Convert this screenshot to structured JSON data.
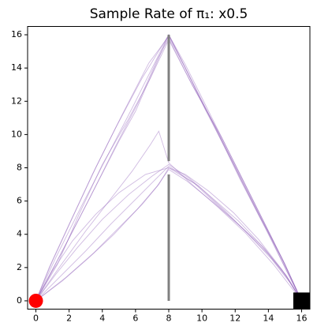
{
  "chart_data": {
    "type": "trajectory",
    "title": "Sample Rate of π₁: x0.5",
    "xlim": [
      -0.5,
      16.5
    ],
    "ylim": [
      -0.5,
      16.5
    ],
    "xticks": [
      0,
      2,
      4,
      6,
      8,
      10,
      12,
      14,
      16
    ],
    "yticks": [
      0,
      2,
      4,
      6,
      8,
      10,
      12,
      14,
      16
    ],
    "line_color": "#9467bd",
    "wall_color": "#808080",
    "start": {
      "x": 0,
      "y": 0,
      "color": "#ff0000"
    },
    "goal": {
      "x": 16,
      "y": 0,
      "color": "#000000"
    },
    "walls": [
      {
        "x": [
          8,
          8
        ],
        "y": [
          0,
          7.6
        ]
      },
      {
        "x": [
          8,
          8
        ],
        "y": [
          8.4,
          16
        ]
      }
    ],
    "trajectories": [
      {
        "x": [
          0,
          1.2,
          2.8,
          4.3,
          5.8,
          7.0,
          8.0,
          9.2,
          10.8,
          12.3,
          13.8,
          15.0,
          16
        ],
        "y": [
          0,
          2.6,
          5.8,
          8.7,
          11.6,
          14.0,
          16.0,
          13.6,
          10.4,
          7.3,
          4.4,
          2.0,
          0
        ]
      },
      {
        "x": [
          0,
          1.0,
          2.2,
          3.6,
          5.2,
          6.8,
          8.0,
          9.0,
          10.2,
          11.8,
          13.4,
          15.0,
          16
        ],
        "y": [
          0,
          2.4,
          5.0,
          8.0,
          11.2,
          14.3,
          15.9,
          14.0,
          11.5,
          8.4,
          5.2,
          2.2,
          0
        ]
      },
      {
        "x": [
          0,
          1.5,
          3.2,
          4.8,
          6.2,
          7.3,
          8.0,
          9.4,
          11.2,
          12.8,
          14.2,
          15.2,
          16
        ],
        "y": [
          0,
          2.8,
          6.1,
          9.3,
          12.0,
          14.5,
          15.8,
          13.0,
          9.8,
          6.6,
          3.8,
          1.7,
          0
        ]
      },
      {
        "x": [
          0,
          0.8,
          2.0,
          3.4,
          4.8,
          6.4,
          8.0,
          9.6,
          11.0,
          12.4,
          13.9,
          15.1,
          16
        ],
        "y": [
          0,
          2.0,
          4.6,
          7.6,
          10.4,
          13.4,
          16.0,
          12.8,
          10.1,
          7.2,
          4.3,
          1.8,
          0
        ]
      },
      {
        "x": [
          0,
          1.8,
          3.4,
          5.0,
          6.0,
          7.4,
          8.0,
          9.0,
          10.6,
          12.0,
          13.2,
          14.8,
          16
        ],
        "y": [
          0,
          3.4,
          6.5,
          9.6,
          11.4,
          14.6,
          16.0,
          14.2,
          11.0,
          8.2,
          5.8,
          2.6,
          0
        ]
      },
      {
        "x": [
          0,
          1.3,
          2.6,
          4.0,
          5.5,
          6.8,
          8.0,
          9.3,
          10.5,
          12.1,
          13.6,
          14.9,
          16
        ],
        "y": [
          0,
          2.2,
          5.2,
          8.2,
          10.8,
          13.2,
          15.7,
          13.2,
          11.0,
          7.9,
          4.9,
          2.4,
          0
        ]
      },
      {
        "x": [
          0,
          1.5,
          3.0,
          4.5,
          6.0,
          7.2,
          8.0,
          9.5,
          11.0,
          12.5,
          14.0,
          15.2,
          16
        ],
        "y": [
          0,
          1.5,
          3.0,
          4.6,
          6.1,
          7.3,
          8.1,
          7.1,
          5.7,
          4.3,
          2.8,
          1.3,
          0
        ]
      },
      {
        "x": [
          0,
          1.2,
          2.5,
          4.0,
          5.6,
          7.0,
          8.0,
          9.2,
          10.6,
          12.2,
          13.8,
          15.0,
          16
        ],
        "y": [
          0,
          1.6,
          3.2,
          4.9,
          6.4,
          7.5,
          8.2,
          7.4,
          6.2,
          4.8,
          3.1,
          1.6,
          0
        ]
      },
      {
        "x": [
          0,
          1.8,
          3.5,
          5.0,
          6.4,
          7.4,
          8.0,
          9.0,
          10.4,
          11.9,
          13.4,
          14.8,
          16
        ],
        "y": [
          0,
          1.4,
          2.9,
          4.4,
          5.8,
          7.0,
          8.0,
          7.6,
          6.6,
          5.3,
          3.7,
          1.9,
          0
        ]
      },
      {
        "x": [
          0,
          1.0,
          2.2,
          3.6,
          5.0,
          6.6,
          8.0,
          9.8,
          11.4,
          12.8,
          14.2,
          15.3,
          16
        ],
        "y": [
          0,
          1.8,
          3.6,
          5.2,
          6.5,
          7.6,
          8.0,
          6.9,
          5.4,
          4.0,
          2.5,
          1.1,
          0
        ]
      },
      {
        "x": [
          0,
          1.4,
          3.0,
          4.4,
          5.8,
          6.9,
          7.4,
          8.0,
          9.4,
          11.0,
          12.6,
          14.3,
          16
        ],
        "y": [
          0,
          2.0,
          4.2,
          6.0,
          7.8,
          9.4,
          10.2,
          8.3,
          7.0,
          5.6,
          4.1,
          2.2,
          0
        ]
      },
      {
        "x": [
          0,
          1.6,
          3.2,
          4.7,
          6.1,
          7.3,
          8.0,
          9.1,
          10.7,
          12.3,
          13.6,
          15.1,
          16
        ],
        "y": [
          0,
          1.2,
          2.6,
          4.0,
          5.5,
          6.9,
          7.9,
          7.2,
          5.9,
          4.5,
          3.3,
          1.5,
          0
        ]
      }
    ]
  }
}
